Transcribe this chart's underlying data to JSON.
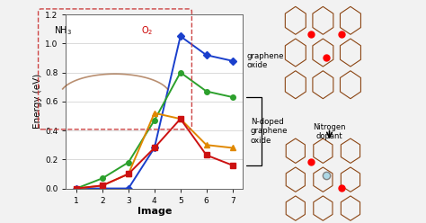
{
  "x": [
    1,
    2,
    3,
    4,
    5,
    6,
    7
  ],
  "series": {
    "blue": [
      0.0,
      0.0,
      0.0,
      0.28,
      1.05,
      0.92,
      0.88
    ],
    "green": [
      0.0,
      0.07,
      0.18,
      0.47,
      0.8,
      0.67,
      0.63
    ],
    "orange": [
      0.0,
      0.02,
      0.1,
      0.52,
      0.48,
      0.3,
      0.28
    ],
    "red": [
      0.0,
      0.02,
      0.1,
      0.28,
      0.48,
      0.23,
      0.16
    ]
  },
  "colors": {
    "blue": "#1a3fcc",
    "green": "#2ca02c",
    "orange": "#e08800",
    "red": "#cc1111"
  },
  "markers": {
    "blue": "D",
    "green": "o",
    "orange": "^",
    "red": "s"
  },
  "xlabel": "Image",
  "ylabel": "Energy (eV)",
  "ylim": [
    0,
    1.2
  ],
  "yticks": [
    0.0,
    0.2,
    0.4,
    0.6,
    0.8,
    1.0,
    1.2
  ],
  "xticks": [
    1,
    2,
    3,
    4,
    5,
    6,
    7
  ],
  "label_graphene_oxide": "graphene\noxide",
  "label_ndoped": "N-doped\ngraphene\noxide",
  "bg_color": "#f2f2f2",
  "plot_bg": "#ffffff",
  "inset_nh3": "NH$_3$",
  "inset_o2": "O$_2$",
  "nitrogen_dopant": "Nitrogen\ndopant"
}
